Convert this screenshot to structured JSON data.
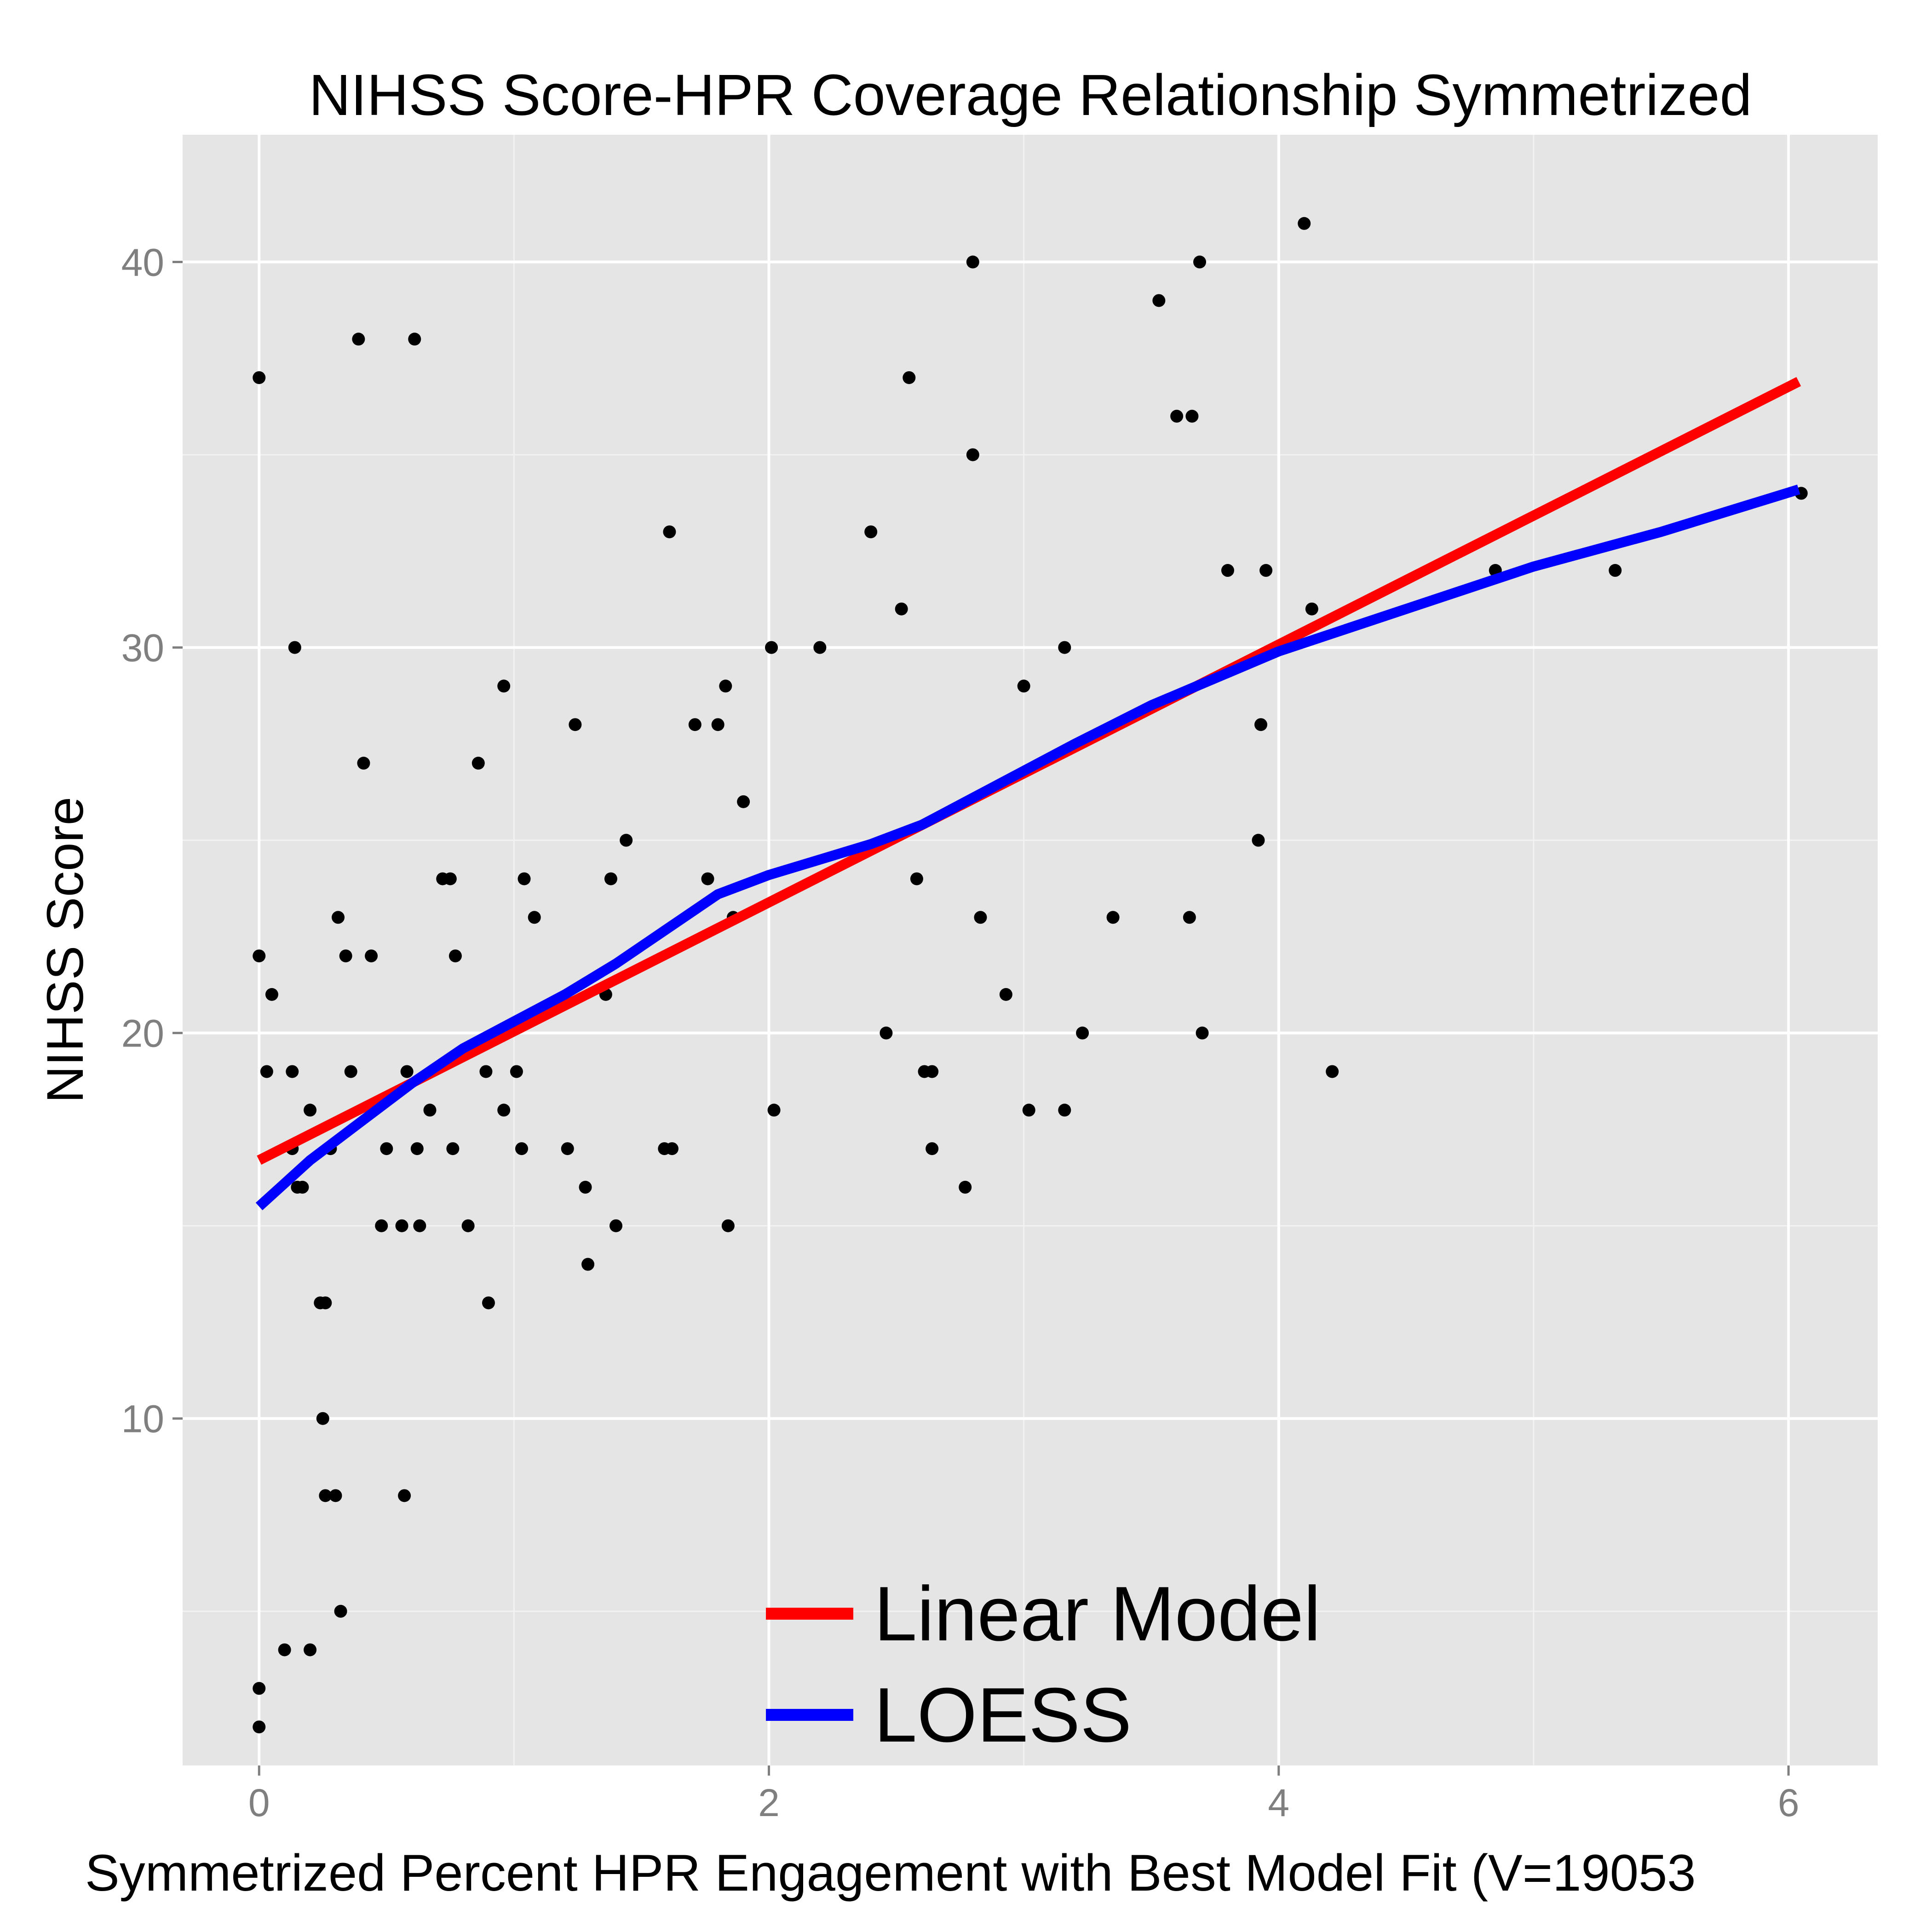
{
  "chart_data": {
    "type": "scatter",
    "title": "NIHSS Score-HPR Coverage Relationship Symmetrized",
    "xlabel": "Symmetrized Percent HPR Engagement with Best Model Fit (V=19053",
    "ylabel": "NIHSS Score",
    "xlim": [
      -0.3,
      6.35
    ],
    "ylim": [
      1.0,
      43.3
    ],
    "x_ticks": [
      0,
      2,
      4,
      6
    ],
    "x_tick_labels": [
      "0",
      "2",
      "4",
      "6"
    ],
    "y_ticks": [
      10,
      20,
      30,
      40
    ],
    "y_tick_labels": [
      "10",
      "20",
      "30",
      "40"
    ],
    "grid": true,
    "background": "#e5e5e5",
    "grid_color": "#ffffff",
    "legend_position": "bottom-center",
    "series": [
      {
        "kind": "points",
        "color": "#000000",
        "points": [
          [
            0.0,
            37
          ],
          [
            0.0,
            22
          ],
          [
            0.0,
            3
          ],
          [
            0.0,
            2
          ],
          [
            0.03,
            19
          ],
          [
            0.05,
            21
          ],
          [
            0.1,
            4
          ],
          [
            0.13,
            19
          ],
          [
            0.13,
            17
          ],
          [
            0.14,
            30
          ],
          [
            0.15,
            16
          ],
          [
            0.17,
            16
          ],
          [
            0.2,
            18
          ],
          [
            0.2,
            4
          ],
          [
            0.24,
            13
          ],
          [
            0.25,
            10
          ],
          [
            0.26,
            13
          ],
          [
            0.26,
            8
          ],
          [
            0.28,
            17
          ],
          [
            0.3,
            8
          ],
          [
            0.31,
            23
          ],
          [
            0.32,
            5
          ],
          [
            0.34,
            22
          ],
          [
            0.36,
            19
          ],
          [
            0.39,
            38
          ],
          [
            0.41,
            27
          ],
          [
            0.44,
            22
          ],
          [
            0.48,
            15
          ],
          [
            0.5,
            17
          ],
          [
            0.56,
            15
          ],
          [
            0.57,
            8
          ],
          [
            0.58,
            19
          ],
          [
            0.61,
            38
          ],
          [
            0.62,
            17
          ],
          [
            0.63,
            15
          ],
          [
            0.67,
            18
          ],
          [
            0.72,
            24
          ],
          [
            0.75,
            24
          ],
          [
            0.76,
            17
          ],
          [
            0.77,
            22
          ],
          [
            0.82,
            15
          ],
          [
            0.86,
            27
          ],
          [
            0.89,
            19
          ],
          [
            0.9,
            13
          ],
          [
            0.96,
            29
          ],
          [
            0.96,
            18
          ],
          [
            1.01,
            19
          ],
          [
            1.03,
            17
          ],
          [
            1.04,
            24
          ],
          [
            1.08,
            23
          ],
          [
            1.21,
            17
          ],
          [
            1.24,
            28
          ],
          [
            1.28,
            16
          ],
          [
            1.29,
            14
          ],
          [
            1.36,
            21
          ],
          [
            1.38,
            24
          ],
          [
            1.4,
            15
          ],
          [
            1.44,
            25
          ],
          [
            1.59,
            17
          ],
          [
            1.61,
            33
          ],
          [
            1.62,
            17
          ],
          [
            1.71,
            28
          ],
          [
            1.76,
            24
          ],
          [
            1.8,
            28
          ],
          [
            1.83,
            29
          ],
          [
            1.84,
            15
          ],
          [
            1.86,
            23
          ],
          [
            1.9,
            26
          ],
          [
            2.01,
            30
          ],
          [
            2.02,
            18
          ],
          [
            2.2,
            30
          ],
          [
            2.4,
            33
          ],
          [
            2.46,
            20
          ],
          [
            2.52,
            31
          ],
          [
            2.55,
            37
          ],
          [
            2.58,
            24
          ],
          [
            2.61,
            19
          ],
          [
            2.64,
            19
          ],
          [
            2.64,
            17
          ],
          [
            2.77,
            16
          ],
          [
            2.8,
            40
          ],
          [
            2.8,
            35
          ],
          [
            2.83,
            23
          ],
          [
            2.93,
            21
          ],
          [
            3.0,
            29
          ],
          [
            3.02,
            18
          ],
          [
            3.16,
            30
          ],
          [
            3.16,
            18
          ],
          [
            3.23,
            20
          ],
          [
            3.35,
            23
          ],
          [
            3.53,
            39
          ],
          [
            3.6,
            36
          ],
          [
            3.65,
            23
          ],
          [
            3.66,
            36
          ],
          [
            3.69,
            40
          ],
          [
            3.7,
            20
          ],
          [
            3.8,
            32
          ],
          [
            3.92,
            25
          ],
          [
            3.93,
            28
          ],
          [
            3.95,
            32
          ],
          [
            4.1,
            41
          ],
          [
            4.13,
            31
          ],
          [
            4.21,
            19
          ],
          [
            4.85,
            32
          ],
          [
            5.32,
            32
          ],
          [
            6.05,
            34
          ]
        ]
      },
      {
        "name": "Linear Model",
        "kind": "line",
        "color": "#ff0000",
        "points": [
          [
            0.0,
            16.7
          ],
          [
            6.04,
            36.9
          ]
        ]
      },
      {
        "name": "LOESS",
        "kind": "line",
        "color": "#0000ff",
        "points": [
          [
            0.0,
            15.5
          ],
          [
            0.1,
            16.1
          ],
          [
            0.2,
            16.7
          ],
          [
            0.3,
            17.2
          ],
          [
            0.4,
            17.7
          ],
          [
            0.5,
            18.2
          ],
          [
            0.6,
            18.7
          ],
          [
            0.8,
            19.6
          ],
          [
            1.0,
            20.3
          ],
          [
            1.2,
            21.0
          ],
          [
            1.4,
            21.8
          ],
          [
            1.6,
            22.7
          ],
          [
            1.8,
            23.6
          ],
          [
            2.0,
            24.1
          ],
          [
            2.2,
            24.5
          ],
          [
            2.4,
            24.9
          ],
          [
            2.6,
            25.4
          ],
          [
            2.8,
            26.1
          ],
          [
            3.0,
            26.8
          ],
          [
            3.2,
            27.5
          ],
          [
            3.5,
            28.5
          ],
          [
            4.0,
            29.9
          ],
          [
            4.5,
            31.0
          ],
          [
            5.0,
            32.1
          ],
          [
            5.5,
            33.0
          ],
          [
            6.04,
            34.1
          ]
        ]
      }
    ]
  }
}
